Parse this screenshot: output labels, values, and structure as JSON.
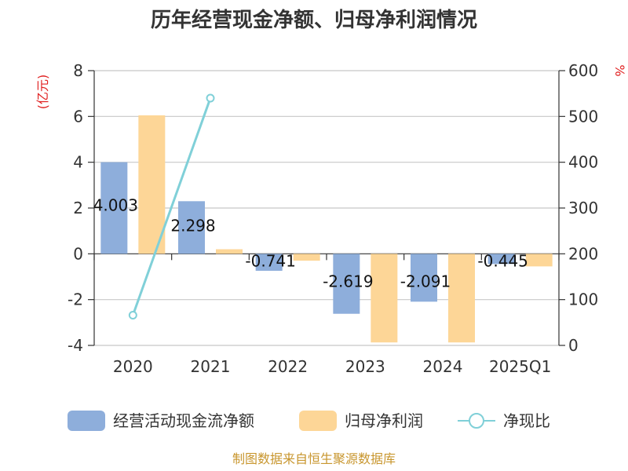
{
  "chart_data": {
    "type": "bar",
    "title": "历年经营现金净额、归母净利润情况",
    "categories": [
      "2020",
      "2021",
      "2022",
      "2023",
      "2024",
      "2025Q1"
    ],
    "y_left": {
      "unit": "(亿元)",
      "ylim": [
        -4,
        8
      ],
      "ticks": [
        -4,
        -2,
        0,
        2,
        4,
        6,
        8
      ]
    },
    "y_right": {
      "unit": "%",
      "ylim": [
        0,
        600
      ],
      "ticks": [
        0,
        100,
        200,
        300,
        400,
        500,
        600
      ]
    },
    "series": [
      {
        "name": "经营活动现金流净额",
        "type": "bar",
        "axis": "left",
        "color": "#8eaedb",
        "values": [
          4.003,
          2.298,
          -0.741,
          -2.619,
          -2.091,
          -0.445
        ],
        "labels": [
          "4.003",
          "2.298",
          "-0.741",
          "-2.619",
          "-2.091",
          "-0.445"
        ]
      },
      {
        "name": "归母净利润",
        "type": "bar",
        "axis": "left",
        "color": "#fdd697",
        "values": [
          6.05,
          0.2,
          -0.3,
          -3.87,
          -3.87,
          -0.55
        ]
      },
      {
        "name": "净现比",
        "type": "line",
        "axis": "right",
        "color": "#80d0d8",
        "values": [
          66,
          540,
          null,
          null,
          null,
          null
        ]
      }
    ],
    "grid": true,
    "legend_position": "bottom"
  },
  "source": "制图数据来自恒生聚源数据库"
}
